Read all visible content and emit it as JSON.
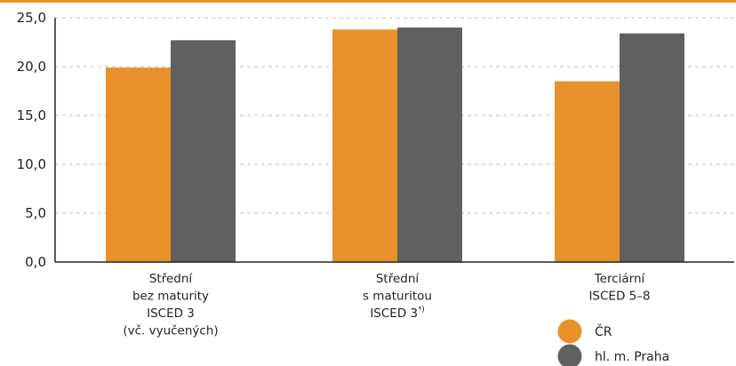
{
  "chart_data": {
    "type": "bar",
    "title": "",
    "xlabel": "",
    "ylabel": "",
    "ylim": [
      0,
      25
    ],
    "yticks": [
      "0,0",
      "5,0",
      "10,0",
      "15,0",
      "20,0",
      "25,0"
    ],
    "ytick_values": [
      0,
      5,
      10,
      15,
      20,
      25
    ],
    "grid": true,
    "legend_position": "bottom-right",
    "categories": [
      [
        "Střední",
        "bez maturity",
        "ISCED 3",
        "(vč. vyučených)"
      ],
      [
        "Střední",
        "s maturitou",
        "ISCED 3"
      ],
      [
        "Terciární",
        "ISCED 5–8"
      ]
    ],
    "category_superscripts": [
      "",
      "*)",
      ""
    ],
    "series": [
      {
        "name": "ČR",
        "color": "#e8912a",
        "values": [
          19.9,
          23.8,
          18.5
        ]
      },
      {
        "name": "hl. m. Praha",
        "color": "#606060",
        "values": [
          22.7,
          24.0,
          23.4
        ]
      }
    ]
  }
}
